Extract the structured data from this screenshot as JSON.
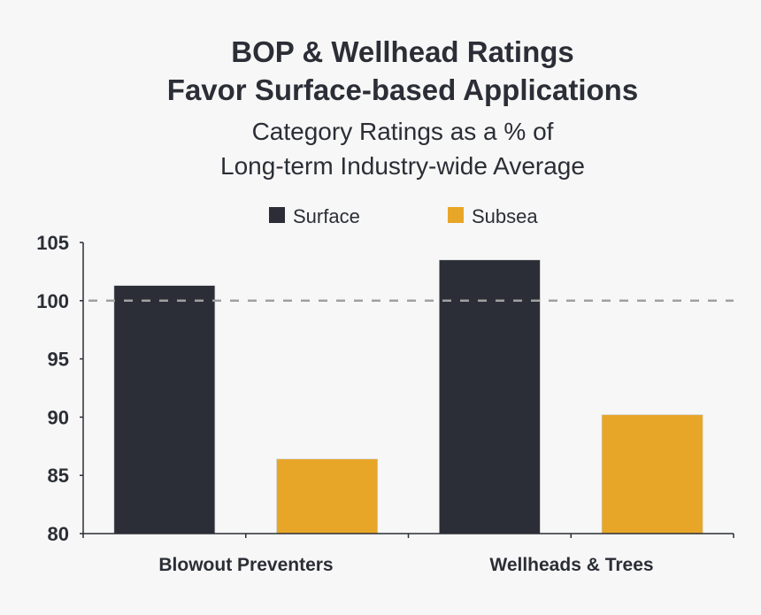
{
  "chart_data": {
    "type": "bar",
    "title": [
      "BOP & Wellhead Ratings",
      "Favor Surface-based Applications"
    ],
    "subtitle": [
      "Category Ratings as a % of",
      "Long-term Industry-wide Average"
    ],
    "categories": [
      "Blowout Preventers",
      "Wellheads & Trees"
    ],
    "series": [
      {
        "name": "Surface",
        "color": "#2b2e36",
        "values": [
          101.3,
          103.5
        ]
      },
      {
        "name": "Subsea",
        "color": "#e8a628",
        "values": [
          86.4,
          90.2
        ]
      }
    ],
    "ylim": [
      80,
      105
    ],
    "yticks": [
      80,
      85,
      90,
      95,
      100,
      105
    ],
    "reference_line": {
      "value": 100,
      "style": "dashed",
      "color": "#a0a0a0"
    },
    "legend": "top-center",
    "grid": false
  }
}
